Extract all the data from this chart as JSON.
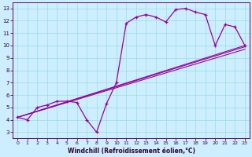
{
  "xlabel": "Windchill (Refroidissement éolien,°C)",
  "background_color": "#cceeff",
  "grid_color": "#99dddd",
  "line_color": "#990099",
  "xlim": [
    -0.5,
    23.5
  ],
  "ylim": [
    2.5,
    13.5
  ],
  "xticks": [
    0,
    1,
    2,
    3,
    4,
    5,
    6,
    7,
    8,
    9,
    10,
    11,
    12,
    13,
    14,
    15,
    16,
    17,
    18,
    19,
    20,
    21,
    22,
    23
  ],
  "yticks": [
    3,
    4,
    5,
    6,
    7,
    8,
    9,
    10,
    11,
    12,
    13
  ],
  "line1_x": [
    0,
    1,
    2,
    3,
    4,
    5,
    6,
    7,
    8,
    9,
    10,
    11,
    12,
    13,
    14,
    15,
    16,
    17,
    18,
    19,
    20,
    21,
    22,
    23
  ],
  "line1_y": [
    4.2,
    4.0,
    5.0,
    5.2,
    5.5,
    5.5,
    5.4,
    4.0,
    3.0,
    5.3,
    7.0,
    11.8,
    12.3,
    12.5,
    12.3,
    11.9,
    12.9,
    13.0,
    12.7,
    12.5,
    10.0,
    11.7,
    11.5,
    10.0
  ],
  "line2_x": [
    0,
    23
  ],
  "line2_y": [
    4.2,
    9.9
  ],
  "line3_x": [
    0,
    23
  ],
  "line3_y": [
    4.2,
    10.0
  ],
  "line4_x": [
    0,
    23
  ],
  "line4_y": [
    4.2,
    9.7
  ]
}
